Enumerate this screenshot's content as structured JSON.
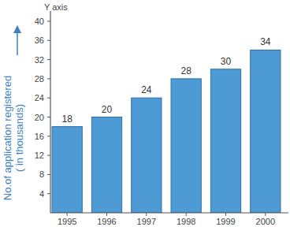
{
  "chart_data": {
    "type": "bar",
    "annotation": "Y axis",
    "y_label": [
      "No.of application registered",
      "( in thousands)"
    ],
    "categories": [
      "1995",
      "1996",
      "1997",
      "1998",
      "1999",
      "2000"
    ],
    "values": [
      18,
      20,
      24,
      28,
      30,
      34
    ],
    "color": "#4e9ad4",
    "ylim": [
      0,
      40
    ],
    "yticks": [
      4,
      8,
      12,
      16,
      20,
      24,
      28,
      32,
      36,
      40
    ],
    "grid": false,
    "data_labels": true
  }
}
